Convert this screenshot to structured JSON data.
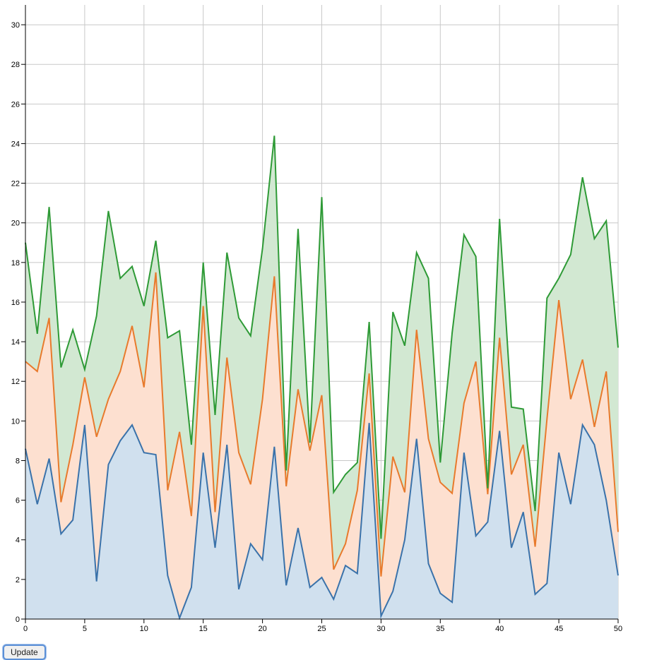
{
  "controls": {
    "update_label": "Update"
  },
  "chart_data": {
    "type": "area",
    "stacked": true,
    "grid": true,
    "legend": "none",
    "title": "",
    "xlabel": "",
    "ylabel": "",
    "xlim": [
      0,
      50
    ],
    "ylim": [
      0,
      31
    ],
    "x_ticks": [
      0,
      5,
      10,
      15,
      20,
      25,
      30,
      35,
      40,
      45,
      50
    ],
    "y_ticks": [
      0,
      2,
      4,
      6,
      8,
      10,
      12,
      14,
      16,
      18,
      20,
      22,
      24,
      26,
      28,
      30
    ],
    "x": [
      0,
      1,
      2,
      3,
      4,
      5,
      6,
      7,
      8,
      9,
      10,
      11,
      12,
      13,
      14,
      15,
      16,
      17,
      18,
      19,
      20,
      21,
      22,
      23,
      24,
      25,
      26,
      27,
      28,
      29,
      30,
      31,
      32,
      33,
      34,
      35,
      36,
      37,
      38,
      39,
      40,
      41,
      42,
      43,
      44,
      45,
      46,
      47,
      48,
      49,
      50
    ],
    "series": [
      {
        "color": "#3a72aa",
        "fill": "#d0e0ee",
        "values": [
          8.6,
          5.8,
          8.1,
          4.3,
          5.0,
          9.8,
          1.9,
          7.8,
          9.0,
          9.8,
          8.4,
          8.3,
          2.2,
          0.05,
          1.6,
          8.4,
          3.6,
          8.8,
          1.5,
          3.8,
          3.0,
          8.7,
          1.7,
          4.6,
          1.6,
          2.1,
          1.0,
          2.7,
          2.3,
          9.9,
          0.15,
          1.4,
          4.0,
          9.1,
          2.8,
          1.3,
          0.85,
          8.4,
          4.2,
          4.9,
          9.5,
          3.6,
          5.4,
          1.25,
          1.8,
          8.4,
          5.8,
          9.8,
          8.8,
          6.0,
          2.2
        ]
      },
      {
        "color": "#e87a2c",
        "fill": "#fde0d0",
        "values": [
          4.4,
          6.7,
          7.1,
          1.6,
          3.8,
          2.4,
          7.3,
          3.3,
          3.5,
          5.0,
          3.3,
          9.2,
          4.3,
          9.4,
          3.6,
          7.4,
          1.8,
          4.4,
          6.9,
          3.0,
          8.1,
          8.6,
          5.0,
          7.0,
          6.9,
          9.2,
          1.5,
          1.1,
          4.2,
          2.5,
          2.0,
          6.8,
          2.4,
          5.5,
          6.3,
          5.6,
          5.5,
          2.5,
          8.8,
          1.4,
          4.7,
          3.7,
          3.4,
          2.4,
          8.3,
          7.7,
          5.3,
          3.3,
          0.9,
          6.5,
          2.2
        ]
      },
      {
        "color": "#2e9a36",
        "fill": "#d2e8d2",
        "values": [
          6.0,
          1.9,
          5.6,
          6.8,
          5.8,
          0.4,
          6.1,
          9.5,
          4.7,
          3.0,
          4.1,
          1.6,
          7.7,
          5.1,
          3.6,
          2.2,
          4.9,
          5.3,
          6.8,
          7.5,
          7.6,
          7.1,
          0.8,
          8.1,
          0.4,
          10.0,
          3.9,
          3.5,
          1.4,
          2.6,
          1.9,
          7.3,
          7.4,
          3.9,
          8.1,
          1.0,
          8.1,
          8.5,
          5.3,
          0.3,
          6.0,
          3.4,
          1.8,
          1.8,
          6.1,
          1.1,
          7.3,
          9.2,
          9.5,
          7.6,
          9.3
        ]
      }
    ]
  }
}
